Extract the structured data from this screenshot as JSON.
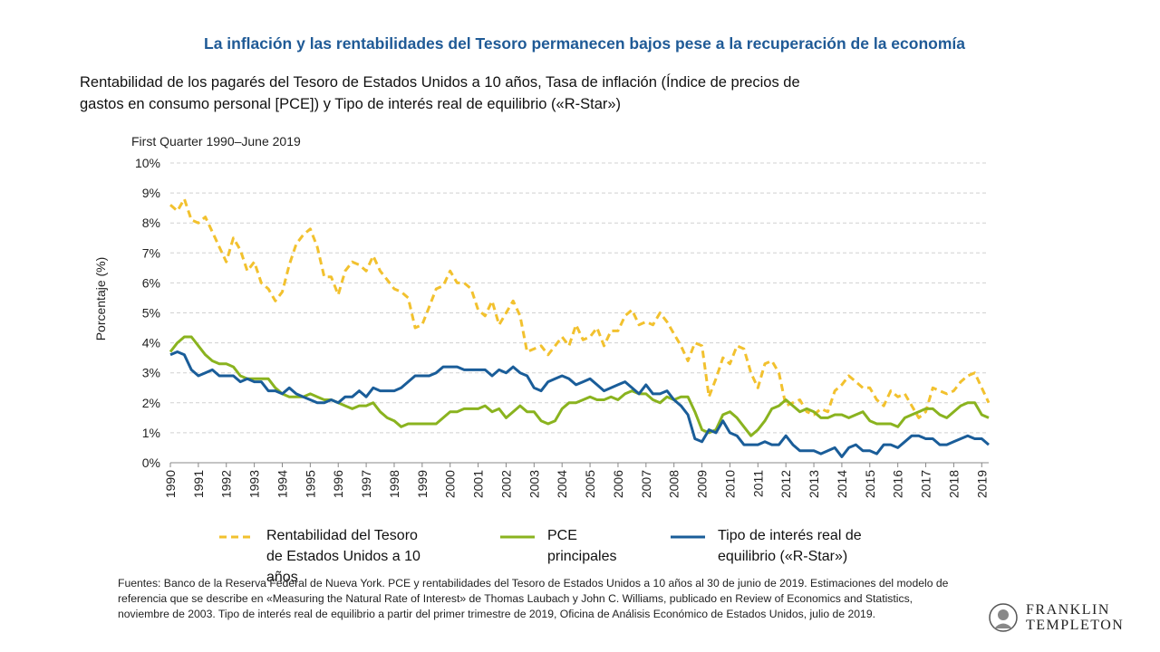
{
  "chart_data": {
    "type": "line",
    "title": "La inflación y las rentabilidades del Tesoro permanecen bajos pese a la recuperación de la economía",
    "subtitle": "Rentabilidad de los pagarés del Tesoro de Estados Unidos a 10 años, Tasa de inflación (Índice de precios de gastos en consumo personal [PCE]) y Tipo de interés real de equilibrio («R-Star»)",
    "note": "First Quarter 1990–June 2019",
    "ylabel": "Porcentaje (%)",
    "categories": [
      "1990",
      null,
      null,
      null,
      "1991",
      null,
      null,
      null,
      "1992",
      null,
      null,
      null,
      "1993",
      null,
      null,
      null,
      "1994",
      null,
      null,
      null,
      "1995",
      null,
      null,
      null,
      "1996",
      null,
      null,
      null,
      "1997",
      null,
      null,
      null,
      "1998",
      null,
      null,
      null,
      "1999",
      null,
      null,
      null,
      "2000",
      null,
      null,
      null,
      "2001",
      null,
      null,
      null,
      "2002",
      null,
      null,
      null,
      "2003",
      null,
      null,
      null,
      "2004",
      null,
      null,
      null,
      "2005",
      null,
      null,
      null,
      "2006",
      null,
      null,
      null,
      "2007",
      null,
      null,
      null,
      "2008",
      null,
      null,
      null,
      "2009",
      null,
      null,
      null,
      "2010",
      null,
      null,
      null,
      "2011",
      null,
      null,
      null,
      "2012",
      null,
      null,
      null,
      "2013",
      null,
      null,
      null,
      "2014",
      null,
      null,
      null,
      "2015",
      null,
      null,
      null,
      "2016",
      null,
      null,
      null,
      "2017",
      null,
      null,
      null,
      "2018",
      null,
      null,
      null,
      "2019",
      null
    ],
    "series": [
      {
        "name": "Rentabilidad del Tesoro de Estados Unidos a 10 años",
        "color": "#f2c12e",
        "style": "dashed",
        "values": [
          8.6,
          8.4,
          8.8,
          8.1,
          8.0,
          8.2,
          7.7,
          7.2,
          6.7,
          7.5,
          7.1,
          6.4,
          6.7,
          6.0,
          5.8,
          5.4,
          5.7,
          6.6,
          7.3,
          7.6,
          7.8,
          7.2,
          6.2,
          6.2,
          5.6,
          6.4,
          6.7,
          6.6,
          6.4,
          6.9,
          6.4,
          6.1,
          5.8,
          5.7,
          5.5,
          4.5,
          4.6,
          5.2,
          5.8,
          5.9,
          6.4,
          6.0,
          6.0,
          5.8,
          5.1,
          4.9,
          5.4,
          4.6,
          5.0,
          5.4,
          4.9,
          3.7,
          3.8,
          3.9,
          3.6,
          3.9,
          4.2,
          3.9,
          4.6,
          4.1,
          4.2,
          4.5,
          3.9,
          4.4,
          4.4,
          4.9,
          5.1,
          4.6,
          4.7,
          4.6,
          5.0,
          4.7,
          4.3,
          3.9,
          3.4,
          4.0,
          3.9,
          2.2,
          2.8,
          3.5,
          3.3,
          3.9,
          3.8,
          3.0,
          2.5,
          3.3,
          3.4,
          3.0,
          1.9,
          2.0,
          2.1,
          1.7,
          1.6,
          1.8,
          1.7,
          2.4,
          2.6,
          2.9,
          2.7,
          2.5,
          2.5,
          2.1,
          1.9,
          2.4,
          2.2,
          2.3,
          1.9,
          1.5,
          1.7,
          2.5,
          2.4,
          2.3,
          2.4,
          2.7,
          2.9,
          3.0,
          2.5,
          2.0
        ]
      },
      {
        "name": "PCE principales",
        "color": "#8ab31f",
        "style": "solid",
        "values": [
          3.7,
          4.0,
          4.2,
          4.2,
          3.9,
          3.6,
          3.4,
          3.3,
          3.3,
          3.2,
          2.9,
          2.8,
          2.8,
          2.8,
          2.8,
          2.5,
          2.3,
          2.2,
          2.2,
          2.2,
          2.3,
          2.2,
          2.1,
          2.1,
          2.0,
          1.9,
          1.8,
          1.9,
          1.9,
          2.0,
          1.7,
          1.5,
          1.4,
          1.2,
          1.3,
          1.3,
          1.3,
          1.3,
          1.3,
          1.5,
          1.7,
          1.7,
          1.8,
          1.8,
          1.8,
          1.9,
          1.7,
          1.8,
          1.5,
          1.7,
          1.9,
          1.7,
          1.7,
          1.4,
          1.3,
          1.4,
          1.8,
          2.0,
          2.0,
          2.1,
          2.2,
          2.1,
          2.1,
          2.2,
          2.1,
          2.3,
          2.4,
          2.3,
          2.3,
          2.1,
          2.0,
          2.2,
          2.1,
          2.2,
          2.2,
          1.7,
          1.1,
          1.0,
          1.1,
          1.6,
          1.7,
          1.5,
          1.2,
          0.9,
          1.1,
          1.4,
          1.8,
          1.9,
          2.1,
          1.9,
          1.7,
          1.8,
          1.7,
          1.5,
          1.5,
          1.6,
          1.6,
          1.5,
          1.6,
          1.7,
          1.4,
          1.3,
          1.3,
          1.3,
          1.2,
          1.5,
          1.6,
          1.7,
          1.8,
          1.8,
          1.6,
          1.5,
          1.7,
          1.9,
          2.0,
          2.0,
          1.6,
          1.5
        ]
      },
      {
        "name": "Tipo de interés real de equilibrio («R-Star»)",
        "color": "#1a5d99",
        "style": "solid",
        "values": [
          3.6,
          3.7,
          3.6,
          3.1,
          2.9,
          3.0,
          3.1,
          2.9,
          2.9,
          2.9,
          2.7,
          2.8,
          2.7,
          2.7,
          2.4,
          2.4,
          2.3,
          2.5,
          2.3,
          2.2,
          2.1,
          2.0,
          2.0,
          2.1,
          2.0,
          2.2,
          2.2,
          2.4,
          2.2,
          2.5,
          2.4,
          2.4,
          2.4,
          2.5,
          2.7,
          2.9,
          2.9,
          2.9,
          3.0,
          3.2,
          3.2,
          3.2,
          3.1,
          3.1,
          3.1,
          3.1,
          2.9,
          3.1,
          3.0,
          3.2,
          3.0,
          2.9,
          2.5,
          2.4,
          2.7,
          2.8,
          2.9,
          2.8,
          2.6,
          2.7,
          2.8,
          2.6,
          2.4,
          2.5,
          2.6,
          2.7,
          2.5,
          2.3,
          2.6,
          2.3,
          2.3,
          2.4,
          2.1,
          1.9,
          1.6,
          0.8,
          0.7,
          1.1,
          1.0,
          1.4,
          1.0,
          0.9,
          0.6,
          0.6,
          0.6,
          0.7,
          0.6,
          0.6,
          0.9,
          0.6,
          0.4,
          0.4,
          0.4,
          0.3,
          0.4,
          0.5,
          0.2,
          0.5,
          0.6,
          0.4,
          0.4,
          0.3,
          0.6,
          0.6,
          0.5,
          0.7,
          0.9,
          0.9,
          0.8,
          0.8,
          0.6,
          0.6,
          0.7,
          0.8,
          0.9,
          0.8,
          0.8,
          0.6
        ]
      }
    ],
    "ylim": [
      0,
      10
    ],
    "yticks": [
      {
        "value": 0,
        "label": "0%"
      },
      {
        "value": 1,
        "label": "1%"
      },
      {
        "value": 2,
        "label": "2%"
      },
      {
        "value": 3,
        "label": "3%"
      },
      {
        "value": 4,
        "label": "4%"
      },
      {
        "value": 5,
        "label": "5%"
      },
      {
        "value": 6,
        "label": "6%"
      },
      {
        "value": 7,
        "label": "7%"
      },
      {
        "value": 8,
        "label": "8%"
      },
      {
        "value": 9,
        "label": "9%"
      },
      {
        "value": 10,
        "label": "10%"
      }
    ],
    "grid": true,
    "legend": "bottom"
  },
  "source": "Fuentes: Banco de la Reserva Federal de Nueva York. PCE y rentabilidades del Tesoro de Estados Unidos a 10 años al 30 de junio de 2019. Estimaciones del modelo de referencia que se describe en «Measuring the Natural Rate of Interest» de Thomas Laubach y John C. Williams, publicado en Review of Economics and Statistics, noviembre de 2003. Tipo de interés real de equilibrio a partir del primer trimestre de 2019, Oficina de Análisis Económico de Estados Unidos, julio de 2019.",
  "logo": [
    "FRANKLIN",
    "TEMPLETON"
  ]
}
